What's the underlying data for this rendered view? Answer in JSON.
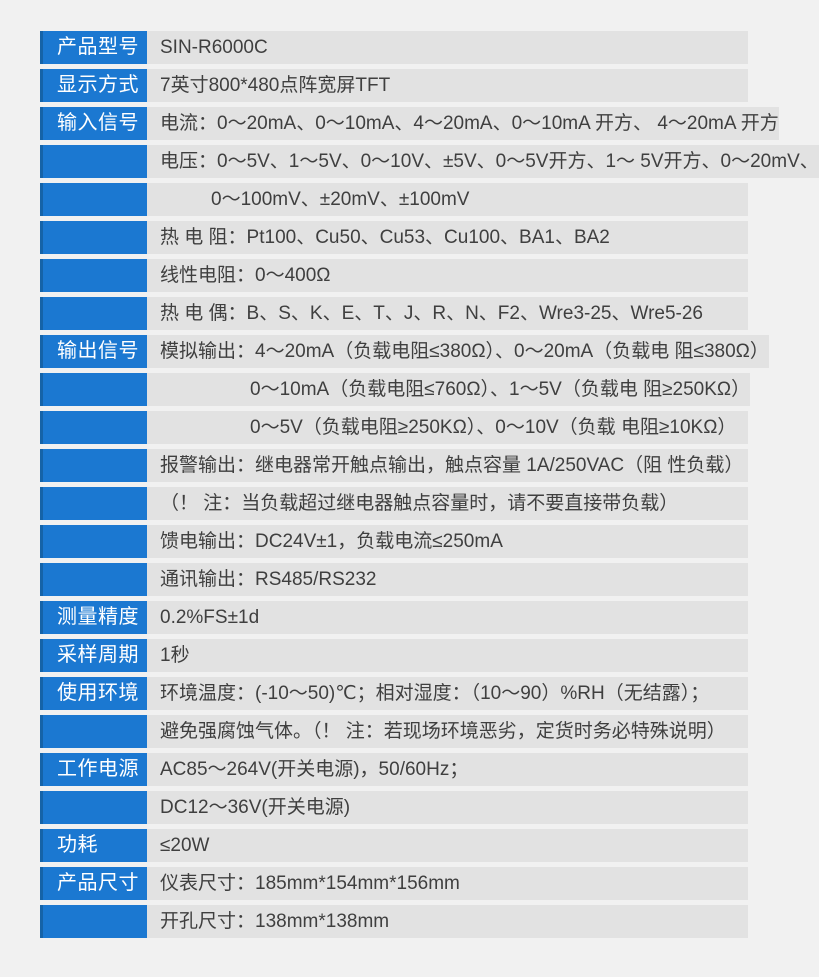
{
  "page": {
    "background_color": "#f1f1f1",
    "label_bg_color": "#1b78d1",
    "label_accent_color": "#1563a8",
    "value_bg_color": "#e2e2e2",
    "value_text_color": "#3f3f3f",
    "label_text_color": "#ffffff"
  },
  "spec_table": {
    "rows": [
      {
        "label": "产品型号",
        "value": "SIN-R6000C",
        "indent": 0
      },
      {
        "label": "显示方式",
        "value": "7英寸800*480点阵宽屏TFT",
        "indent": 0
      },
      {
        "label": "输入信号",
        "value": "电流：0～20mA、0～10mA、4～20mA、0～10mA 开方、 4～20mA 开方",
        "indent": 0
      },
      {
        "label": "",
        "value": "电压：0～5V、1～5V、0～10V、±5V、0～5V开方、1～ 5V开方、0～20mV、",
        "indent": 0
      },
      {
        "label": "",
        "value": "0～100mV、±20mV、±100mV",
        "indent": 1
      },
      {
        "label": "",
        "value": "热 电 阻：Pt100、Cu50、Cu53、Cu100、BA1、BA2",
        "indent": 0
      },
      {
        "label": "",
        "value": "线性电阻：0～400Ω",
        "indent": 0
      },
      {
        "label": "",
        "value": "热 电 偶：B、S、K、E、T、J、R、N、F2、Wre3-25、Wre5-26",
        "indent": 0
      },
      {
        "label": "输出信号",
        "value": "模拟输出：4～20mA（负载电阻≤380Ω）、0～20mA（负载电 阻≤380Ω）",
        "indent": 0
      },
      {
        "label": "",
        "value": "0～10mA（负载电阻≤760Ω）、1～5V（负载电 阻≥250KΩ）",
        "indent": 2
      },
      {
        "label": "",
        "value": "0～5V（负载电阻≥250KΩ）、0～10V（负载 电阻≥10KΩ）",
        "indent": 2
      },
      {
        "label": "",
        "value": "报警输出：继电器常开触点输出，触点容量 1A/250VAC（阻 性负载）",
        "indent": 0
      },
      {
        "label": "",
        "value": "（！ 注：当负载超过继电器触点容量时，请不要直接带负载）",
        "indent": 0
      },
      {
        "label": "",
        "value": "馈电输出：DC24V±1，负载电流≤250mA",
        "indent": 0
      },
      {
        "label": "",
        "value": "通讯输出：RS485/RS232",
        "indent": 0
      },
      {
        "label": "测量精度",
        "value": "0.2%FS±1d",
        "indent": 0
      },
      {
        "label": "采样周期",
        "value": "1秒",
        "indent": 0
      },
      {
        "label": "使用环境",
        "value": "环境温度：(-10～50)℃；相对湿度：（10～90）%RH（无结露）；",
        "indent": 0
      },
      {
        "label": "",
        "value": "避免强腐蚀气体。（！ 注：若现场环境恶劣，定货时务必特殊说明）",
        "indent": 0
      },
      {
        "label": "工作电源",
        "value": "AC85～264V(开关电源)，50/60Hz；",
        "indent": 0
      },
      {
        "label": "",
        "value": "DC12～36V(开关电源)",
        "indent": 0
      },
      {
        "label": "功耗",
        "value": "≤20W",
        "indent": 0
      },
      {
        "label": "产品尺寸",
        "value": "仪表尺寸：185mm*154mm*156mm",
        "indent": 0
      },
      {
        "label": "",
        "value": "开孔尺寸：138mm*138mm",
        "indent": 0
      }
    ]
  }
}
